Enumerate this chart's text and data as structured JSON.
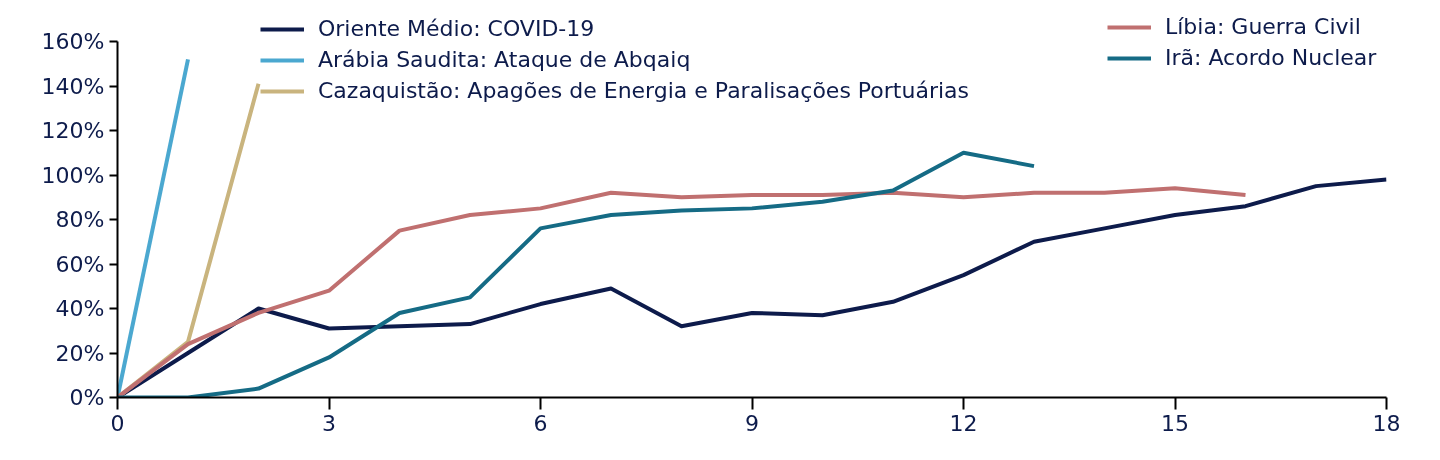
{
  "chart_data": {
    "type": "line",
    "xlim": [
      0,
      18
    ],
    "xticks": [
      0,
      3,
      6,
      9,
      12,
      15,
      18
    ],
    "ylim": [
      0,
      160
    ],
    "yticks": [
      {
        "value": 0,
        "label": "0%"
      },
      {
        "value": 20,
        "label": "20%"
      },
      {
        "value": 40,
        "label": "40%"
      },
      {
        "value": 60,
        "label": "60%"
      },
      {
        "value": 80,
        "label": "80%"
      },
      {
        "value": 100,
        "label": "100%"
      },
      {
        "value": 120,
        "label": "120%"
      },
      {
        "value": 140,
        "label": "140%"
      },
      {
        "value": 160,
        "label": "160%"
      }
    ],
    "grid": false,
    "legend": "top",
    "line_style": "solid",
    "marker": "none",
    "series": [
      {
        "name": "Oriente Médio: COVID-19",
        "color": "#0d1b4b",
        "x": [
          0,
          1,
          2,
          3,
          4,
          5,
          6,
          7,
          8,
          9,
          10,
          11,
          12,
          13,
          14,
          15,
          16,
          17,
          18
        ],
        "values": [
          0,
          20,
          40,
          31,
          32,
          33,
          42,
          49,
          32,
          38,
          37,
          43,
          55,
          70,
          76,
          82,
          86,
          95,
          98
        ]
      },
      {
        "name": "Arábia Saudita: Ataque de Abqaiq",
        "color": "#4ba8d0",
        "x": [
          0,
          1
        ],
        "values": [
          0,
          152
        ]
      },
      {
        "name": "Cazaquistão: Apagões de Energia e Paralisações Portuárias",
        "color": "#c9b47e",
        "x": [
          0,
          1,
          2
        ],
        "values": [
          0,
          25,
          141
        ]
      },
      {
        "name": "Líbia: Guerra Civil",
        "color": "#c07070",
        "x": [
          0,
          1,
          2,
          3,
          4,
          5,
          6,
          7,
          8,
          9,
          10,
          11,
          12,
          13,
          14,
          15,
          16
        ],
        "values": [
          0,
          24,
          38,
          48,
          75,
          82,
          85,
          92,
          90,
          91,
          91,
          92,
          90,
          92,
          92,
          94,
          91
        ]
      },
      {
        "name": "Irã: Acordo Nuclear",
        "color": "#156b85",
        "x": [
          0,
          1,
          2,
          3,
          4,
          5,
          6,
          7,
          8,
          9,
          10,
          11,
          12,
          13
        ],
        "values": [
          0,
          0,
          4,
          18,
          38,
          45,
          76,
          82,
          84,
          85,
          88,
          93,
          110,
          104
        ]
      }
    ]
  }
}
